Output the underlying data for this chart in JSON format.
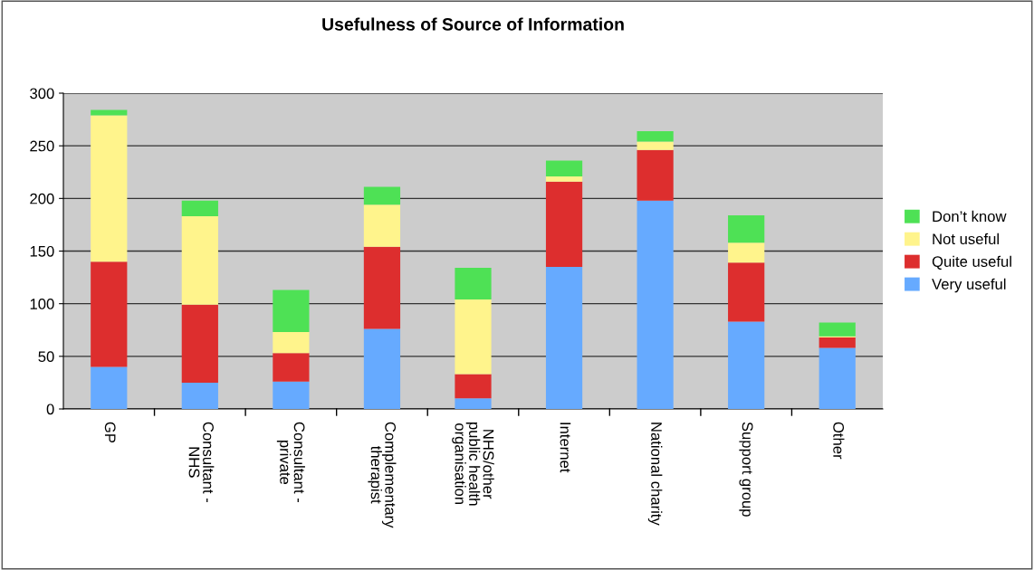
{
  "chart_data": {
    "type": "bar",
    "stacked": true,
    "title": "Usefulness of Source of Information",
    "categories": [
      "GP",
      "Consultant -\nNHS",
      "Consultant -\nprivate",
      "Complementary\ntherapist",
      "NHS/other\npublic health\norganisation",
      "Internet",
      "National charity",
      "Support group",
      "Other"
    ],
    "series": [
      {
        "name": "Very useful",
        "color": "#66aaff",
        "values": [
          40,
          25,
          26,
          76,
          10,
          135,
          198,
          83,
          58
        ]
      },
      {
        "name": "Quite useful",
        "color": "#dd2e2e",
        "values": [
          100,
          74,
          27,
          78,
          23,
          81,
          48,
          56,
          10
        ]
      },
      {
        "name": "Not useful",
        "color": "#fff48c",
        "values": [
          139,
          84,
          20,
          40,
          71,
          5,
          8,
          19,
          1
        ]
      },
      {
        "name": "Don’t know",
        "color": "#4ee155",
        "values": [
          5,
          15,
          40,
          17,
          30,
          15,
          10,
          26,
          13
        ]
      }
    ],
    "ylim": [
      0,
      300
    ],
    "yticks": [
      0,
      50,
      100,
      150,
      200,
      250,
      300
    ],
    "grid": "y",
    "legend": "right"
  }
}
